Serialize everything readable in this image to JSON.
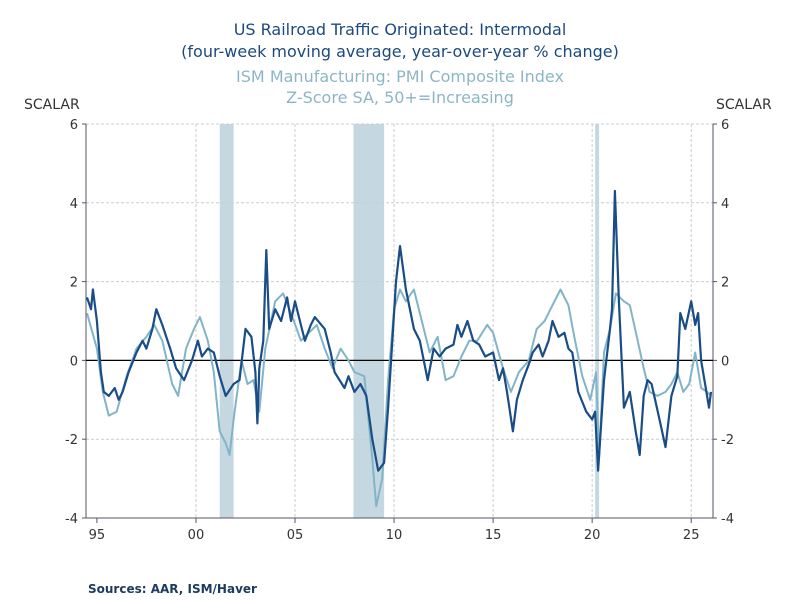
{
  "chart_data": {
    "type": "line",
    "title": [
      "US Railroad Traffic Originated: Intermodal",
      "(four-week moving average, year-over-year % change)"
    ],
    "subtitle": [
      "ISM Manufacturing: PMI Composite Index",
      "Z-Score  SA, 50+=Increasing"
    ],
    "ylabel_left": "SCALAR",
    "ylabel_right": "SCALAR",
    "ylim": [
      -4,
      6
    ],
    "yticks": [
      -4,
      -2,
      0,
      2,
      4,
      6
    ],
    "xlim": [
      1994.45,
      2026.1
    ],
    "xticks": [
      {
        "v": 1995,
        "label": "95"
      },
      {
        "v": 2000,
        "label": "00"
      },
      {
        "v": 2005,
        "label": "05"
      },
      {
        "v": 2010,
        "label": "10"
      },
      {
        "v": 2015,
        "label": "15"
      },
      {
        "v": 2020,
        "label": "20"
      },
      {
        "v": 2025,
        "label": "25"
      }
    ],
    "grid": true,
    "recessions": [
      [
        2001.2,
        2001.9
      ],
      [
        2007.95,
        2009.5
      ],
      [
        2020.15,
        2020.35
      ]
    ],
    "colors": {
      "rail": "#1a4c85",
      "ism": "#82b4c8",
      "recession": "#c5d8e2"
    },
    "series": [
      {
        "key": "rail",
        "points": [
          [
            1994.5,
            1.6
          ],
          [
            1994.7,
            1.3
          ],
          [
            1994.8,
            1.8
          ],
          [
            1995.0,
            1.0
          ],
          [
            1995.2,
            -0.3
          ],
          [
            1995.35,
            -0.8
          ],
          [
            1995.6,
            -0.9
          ],
          [
            1995.9,
            -0.7
          ],
          [
            1996.1,
            -1.0
          ],
          [
            1996.3,
            -0.8
          ],
          [
            1996.6,
            -0.3
          ],
          [
            1997.0,
            0.2
          ],
          [
            1997.3,
            0.5
          ],
          [
            1997.5,
            0.3
          ],
          [
            1997.8,
            0.8
          ],
          [
            1998.0,
            1.3
          ],
          [
            1998.3,
            0.9
          ],
          [
            1998.7,
            0.3
          ],
          [
            1999.0,
            -0.2
          ],
          [
            1999.4,
            -0.5
          ],
          [
            1999.8,
            0.0
          ],
          [
            2000.1,
            0.5
          ],
          [
            2000.3,
            0.1
          ],
          [
            2000.6,
            0.3
          ],
          [
            2000.9,
            0.2
          ],
          [
            2001.2,
            -0.4
          ],
          [
            2001.5,
            -0.9
          ],
          [
            2001.9,
            -0.6
          ],
          [
            2002.2,
            -0.5
          ],
          [
            2002.5,
            0.8
          ],
          [
            2002.8,
            0.6
          ],
          [
            2003.0,
            -0.3
          ],
          [
            2003.1,
            -1.6
          ],
          [
            2003.2,
            -0.2
          ],
          [
            2003.4,
            0.5
          ],
          [
            2003.55,
            2.8
          ],
          [
            2003.7,
            0.8
          ],
          [
            2004.0,
            1.3
          ],
          [
            2004.3,
            1.0
          ],
          [
            2004.6,
            1.6
          ],
          [
            2004.8,
            1.0
          ],
          [
            2005.0,
            1.5
          ],
          [
            2005.3,
            0.9
          ],
          [
            2005.5,
            0.5
          ],
          [
            2005.8,
            0.9
          ],
          [
            2006.0,
            1.1
          ],
          [
            2006.5,
            0.8
          ],
          [
            2006.8,
            0.2
          ],
          [
            2007.0,
            -0.3
          ],
          [
            2007.5,
            -0.7
          ],
          [
            2007.7,
            -0.4
          ],
          [
            2008.0,
            -0.8
          ],
          [
            2008.3,
            -0.6
          ],
          [
            2008.6,
            -0.9
          ],
          [
            2008.9,
            -2.0
          ],
          [
            2009.2,
            -2.8
          ],
          [
            2009.5,
            -2.6
          ],
          [
            2009.7,
            -1.2
          ],
          [
            2009.85,
            0.0
          ],
          [
            2010.1,
            2.0
          ],
          [
            2010.3,
            2.9
          ],
          [
            2010.6,
            1.8
          ],
          [
            2011.0,
            0.8
          ],
          [
            2011.3,
            0.5
          ],
          [
            2011.7,
            -0.5
          ],
          [
            2012.0,
            0.3
          ],
          [
            2012.3,
            0.1
          ],
          [
            2012.6,
            0.3
          ],
          [
            2013.0,
            0.4
          ],
          [
            2013.2,
            0.9
          ],
          [
            2013.4,
            0.6
          ],
          [
            2013.7,
            1.0
          ],
          [
            2014.0,
            0.5
          ],
          [
            2014.3,
            0.4
          ],
          [
            2014.6,
            0.1
          ],
          [
            2015.0,
            0.2
          ],
          [
            2015.3,
            -0.5
          ],
          [
            2015.5,
            -0.2
          ],
          [
            2015.7,
            -0.8
          ],
          [
            2016.0,
            -1.8
          ],
          [
            2016.2,
            -1.0
          ],
          [
            2016.5,
            -0.5
          ],
          [
            2016.8,
            -0.1
          ],
          [
            2017.0,
            0.2
          ],
          [
            2017.3,
            0.4
          ],
          [
            2017.5,
            0.1
          ],
          [
            2017.8,
            0.5
          ],
          [
            2018.0,
            1.0
          ],
          [
            2018.3,
            0.6
          ],
          [
            2018.6,
            0.7
          ],
          [
            2018.8,
            0.3
          ],
          [
            2019.0,
            0.2
          ],
          [
            2019.3,
            -0.8
          ],
          [
            2019.7,
            -1.3
          ],
          [
            2020.0,
            -1.5
          ],
          [
            2020.15,
            -1.3
          ],
          [
            2020.3,
            -2.8
          ],
          [
            2020.6,
            -0.5
          ],
          [
            2020.9,
            0.8
          ],
          [
            2021.0,
            1.3
          ],
          [
            2021.15,
            4.3
          ],
          [
            2021.35,
            1.5
          ],
          [
            2021.6,
            -1.2
          ],
          [
            2021.9,
            -0.8
          ],
          [
            2022.2,
            -1.8
          ],
          [
            2022.4,
            -2.4
          ],
          [
            2022.6,
            -0.9
          ],
          [
            2022.8,
            -0.5
          ],
          [
            2023.0,
            -0.6
          ],
          [
            2023.4,
            -1.5
          ],
          [
            2023.7,
            -2.2
          ],
          [
            2024.0,
            -0.9
          ],
          [
            2024.3,
            -0.4
          ],
          [
            2024.45,
            1.2
          ],
          [
            2024.7,
            0.8
          ],
          [
            2025.0,
            1.5
          ],
          [
            2025.2,
            0.9
          ],
          [
            2025.35,
            1.2
          ],
          [
            2025.5,
            0.0
          ],
          [
            2025.7,
            -0.6
          ],
          [
            2025.9,
            -1.2
          ],
          [
            2026.0,
            -0.8
          ]
        ]
      },
      {
        "key": "ism",
        "points": [
          [
            1994.5,
            1.2
          ],
          [
            1995.0,
            0.3
          ],
          [
            1995.3,
            -0.8
          ],
          [
            1995.6,
            -1.4
          ],
          [
            1996.0,
            -1.3
          ],
          [
            1996.5,
            -0.4
          ],
          [
            1997.0,
            0.3
          ],
          [
            1997.5,
            0.6
          ],
          [
            1997.9,
            0.9
          ],
          [
            1998.3,
            0.5
          ],
          [
            1998.8,
            -0.6
          ],
          [
            1999.1,
            -0.9
          ],
          [
            1999.5,
            0.3
          ],
          [
            1999.9,
            0.8
          ],
          [
            2000.2,
            1.1
          ],
          [
            2000.6,
            0.5
          ],
          [
            2000.9,
            -0.3
          ],
          [
            2001.2,
            -1.8
          ],
          [
            2001.5,
            -2.1
          ],
          [
            2001.7,
            -2.4
          ],
          [
            2001.9,
            -1.5
          ],
          [
            2002.3,
            0.0
          ],
          [
            2002.6,
            -0.6
          ],
          [
            2002.9,
            -0.5
          ],
          [
            2003.2,
            -1.3
          ],
          [
            2003.5,
            0.3
          ],
          [
            2004.0,
            1.5
          ],
          [
            2004.4,
            1.7
          ],
          [
            2004.8,
            1.2
          ],
          [
            2005.3,
            0.5
          ],
          [
            2005.7,
            0.7
          ],
          [
            2006.1,
            0.9
          ],
          [
            2006.5,
            0.3
          ],
          [
            2006.9,
            -0.2
          ],
          [
            2007.3,
            0.3
          ],
          [
            2007.7,
            0.0
          ],
          [
            2008.0,
            -0.3
          ],
          [
            2008.5,
            -0.4
          ],
          [
            2008.9,
            -2.5
          ],
          [
            2009.1,
            -3.7
          ],
          [
            2009.4,
            -3.0
          ],
          [
            2009.7,
            -0.5
          ],
          [
            2010.0,
            1.3
          ],
          [
            2010.3,
            1.8
          ],
          [
            2010.6,
            1.5
          ],
          [
            2011.0,
            1.8
          ],
          [
            2011.4,
            1.0
          ],
          [
            2011.8,
            0.2
          ],
          [
            2012.2,
            0.6
          ],
          [
            2012.6,
            -0.5
          ],
          [
            2013.0,
            -0.4
          ],
          [
            2013.4,
            0.1
          ],
          [
            2013.8,
            0.5
          ],
          [
            2014.2,
            0.5
          ],
          [
            2014.7,
            0.9
          ],
          [
            2015.0,
            0.7
          ],
          [
            2015.5,
            -0.2
          ],
          [
            2015.9,
            -0.8
          ],
          [
            2016.3,
            -0.3
          ],
          [
            2016.8,
            0.0
          ],
          [
            2017.2,
            0.8
          ],
          [
            2017.6,
            1.0
          ],
          [
            2018.0,
            1.4
          ],
          [
            2018.4,
            1.8
          ],
          [
            2018.8,
            1.4
          ],
          [
            2019.1,
            0.6
          ],
          [
            2019.5,
            -0.4
          ],
          [
            2019.9,
            -1.0
          ],
          [
            2020.2,
            -0.3
          ],
          [
            2020.35,
            -2.5
          ],
          [
            2020.6,
            0.2
          ],
          [
            2020.9,
            0.8
          ],
          [
            2021.2,
            1.7
          ],
          [
            2021.6,
            1.5
          ],
          [
            2021.9,
            1.4
          ],
          [
            2022.3,
            0.5
          ],
          [
            2022.6,
            -0.2
          ],
          [
            2022.9,
            -0.8
          ],
          [
            2023.3,
            -0.9
          ],
          [
            2023.7,
            -0.8
          ],
          [
            2024.0,
            -0.6
          ],
          [
            2024.3,
            -0.3
          ],
          [
            2024.6,
            -0.8
          ],
          [
            2024.9,
            -0.6
          ],
          [
            2025.2,
            0.2
          ],
          [
            2025.5,
            -0.7
          ],
          [
            2025.8,
            -0.8
          ],
          [
            2026.0,
            -0.9
          ]
        ]
      }
    ]
  },
  "source": "Sources:  AAR, ISM/Haver"
}
